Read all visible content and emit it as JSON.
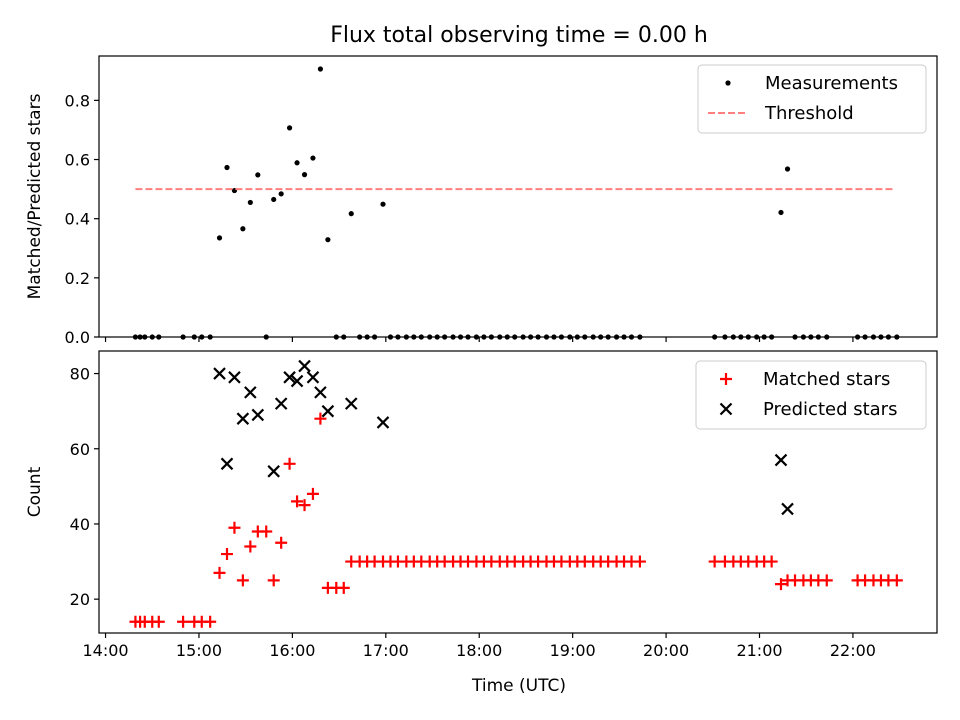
{
  "figure": {
    "title": "Flux total observing time = 0.00 h",
    "xlabel": "Time (UTC)"
  },
  "chart_data": [
    {
      "type": "scatter",
      "title": "Flux total observing time = 0.00 h",
      "xlabel": "",
      "ylabel": "Matched/Predicted stars",
      "xlim": [
        13.93,
        22.9
      ],
      "ylim": [
        0,
        0.95
      ],
      "yticks": [
        0.0,
        0.2,
        0.4,
        0.6,
        0.8
      ],
      "yticklabels": [
        "0.0",
        "0.2",
        "0.4",
        "0.6",
        "0.8"
      ],
      "grid": false,
      "legend": "top-right",
      "series": [
        {
          "name": "Measurements",
          "kind": "scatter",
          "marker": "dot",
          "color": "#000000",
          "x": [
            14.32,
            14.37,
            14.42,
            14.5,
            14.57,
            14.83,
            14.95,
            15.03,
            15.12,
            15.22,
            15.3,
            15.38,
            15.47,
            15.55,
            15.63,
            15.72,
            15.8,
            15.88,
            15.97,
            16.05,
            16.13,
            16.22,
            16.3,
            16.38,
            16.47,
            16.55,
            16.63,
            16.72,
            16.8,
            16.88,
            16.97,
            17.05,
            17.13,
            17.22,
            17.3,
            17.38,
            17.47,
            17.55,
            17.63,
            17.72,
            17.8,
            17.88,
            17.97,
            18.05,
            18.13,
            18.22,
            18.3,
            18.38,
            18.47,
            18.55,
            18.63,
            18.72,
            18.8,
            18.88,
            18.97,
            19.05,
            19.13,
            19.22,
            19.3,
            19.38,
            19.47,
            19.55,
            19.63,
            19.72,
            20.52,
            20.63,
            20.72,
            20.8,
            20.88,
            20.97,
            21.05,
            21.13,
            21.23,
            21.3,
            21.38,
            21.47,
            21.55,
            21.63,
            21.72,
            22.05,
            22.13,
            22.22,
            22.3,
            22.38,
            22.47
          ],
          "y": [
            0,
            0,
            0,
            0,
            0,
            0,
            0,
            0,
            0,
            0.335,
            0.573,
            0.495,
            0.366,
            0.455,
            0.548,
            0,
            0.465,
            0.484,
            0.707,
            0.589,
            0.549,
            0.605,
            0.906,
            0.329,
            0,
            0,
            0.417,
            0,
            0,
            0,
            0.449,
            0,
            0,
            0,
            0,
            0,
            0,
            0,
            0,
            0,
            0,
            0,
            0,
            0,
            0,
            0,
            0,
            0,
            0,
            0,
            0,
            0,
            0,
            0,
            0,
            0,
            0,
            0,
            0,
            0,
            0,
            0,
            0,
            0,
            0,
            0,
            0,
            0,
            0,
            0,
            0,
            0,
            0.421,
            0.568,
            0,
            0,
            0,
            0,
            0,
            0,
            0,
            0,
            0,
            0,
            0
          ]
        },
        {
          "name": "Threshold",
          "kind": "line",
          "style": "dashed",
          "color": "#ff7f7f",
          "x": [
            14.32,
            22.45
          ],
          "y": [
            0.5,
            0.5
          ]
        }
      ]
    },
    {
      "type": "scatter",
      "title": "",
      "xlabel": "Time (UTC)",
      "ylabel": "Count",
      "xlim": [
        13.93,
        22.9
      ],
      "ylim": [
        11,
        86
      ],
      "yticks": [
        20,
        40,
        60,
        80
      ],
      "yticklabels": [
        "20",
        "40",
        "60",
        "80"
      ],
      "xticks": [
        14,
        15,
        16,
        17,
        18,
        19,
        20,
        21,
        22
      ],
      "xticklabels": [
        "14:00",
        "15:00",
        "16:00",
        "17:00",
        "18:00",
        "19:00",
        "20:00",
        "21:00",
        "22:00"
      ],
      "grid": false,
      "legend": "top-right",
      "series": [
        {
          "name": "Matched stars",
          "kind": "scatter",
          "marker": "plus",
          "color": "#ff0000",
          "x": [
            14.32,
            14.37,
            14.42,
            14.5,
            14.57,
            14.83,
            14.95,
            15.03,
            15.12,
            15.22,
            15.3,
            15.38,
            15.47,
            15.55,
            15.63,
            15.72,
            15.8,
            15.88,
            15.97,
            16.05,
            16.13,
            16.22,
            16.3,
            16.38,
            16.47,
            16.55,
            16.63,
            16.72,
            16.8,
            16.88,
            16.97,
            17.05,
            17.13,
            17.22,
            17.3,
            17.38,
            17.47,
            17.55,
            17.63,
            17.72,
            17.8,
            17.88,
            17.97,
            18.05,
            18.13,
            18.22,
            18.3,
            18.38,
            18.47,
            18.55,
            18.63,
            18.72,
            18.8,
            18.88,
            18.97,
            19.05,
            19.13,
            19.22,
            19.3,
            19.38,
            19.47,
            19.55,
            19.63,
            19.72,
            20.52,
            20.63,
            20.72,
            20.8,
            20.88,
            20.97,
            21.05,
            21.13,
            21.23,
            21.3,
            21.38,
            21.47,
            21.55,
            21.63,
            21.72,
            22.05,
            22.13,
            22.22,
            22.3,
            22.38,
            22.47
          ],
          "y": [
            14,
            14,
            14,
            14,
            14,
            14,
            14,
            14,
            14,
            27,
            32,
            39,
            25,
            34,
            38,
            38,
            25,
            35,
            56,
            46,
            45,
            48,
            68,
            23,
            23,
            23,
            30,
            30,
            30,
            30,
            30,
            30,
            30,
            30,
            30,
            30,
            30,
            30,
            30,
            30,
            30,
            30,
            30,
            30,
            30,
            30,
            30,
            30,
            30,
            30,
            30,
            30,
            30,
            30,
            30,
            30,
            30,
            30,
            30,
            30,
            30,
            30,
            30,
            30,
            30,
            30,
            30,
            30,
            30,
            30,
            30,
            30,
            24,
            25,
            25,
            25,
            25,
            25,
            25,
            25,
            25,
            25,
            25,
            25,
            25
          ]
        },
        {
          "name": "Predicted stars",
          "kind": "scatter",
          "marker": "x",
          "color": "#000000",
          "x": [
            15.22,
            15.3,
            15.38,
            15.47,
            15.55,
            15.63,
            15.8,
            15.88,
            15.97,
            16.05,
            16.13,
            16.22,
            16.3,
            16.38,
            16.63,
            16.97,
            21.23,
            21.3
          ],
          "y": [
            80,
            56,
            79,
            68,
            75,
            69,
            54,
            72,
            79,
            78,
            82,
            79,
            75,
            70,
            72,
            67,
            57,
            44
          ]
        }
      ]
    }
  ]
}
